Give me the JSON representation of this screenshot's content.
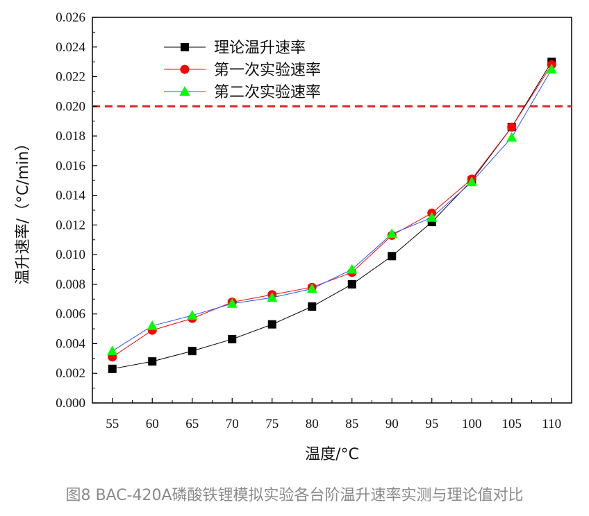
{
  "chart_data": {
    "type": "line",
    "x": [
      55,
      60,
      65,
      70,
      75,
      80,
      85,
      90,
      95,
      100,
      105,
      110
    ],
    "xlabel": "温度/°C",
    "ylabel": "温升速率/（°C/min）",
    "xlim": [
      52.5,
      112.5
    ],
    "ylim": [
      0,
      0.026
    ],
    "y_ticks": [
      "0.000",
      "0.002",
      "0.004",
      "0.006",
      "0.008",
      "0.010",
      "0.012",
      "0.014",
      "0.016",
      "0.018",
      "0.020",
      "0.022",
      "0.024",
      "0.026"
    ],
    "series": [
      {
        "name": "理论温升速率",
        "color": "#000000",
        "marker": "square",
        "values": [
          0.0023,
          0.0028,
          0.0035,
          0.0043,
          0.0053,
          0.0065,
          0.008,
          0.0099,
          0.0122,
          0.015,
          0.0186,
          0.023
        ]
      },
      {
        "name": "第一次实验速率",
        "color": "#ff0000",
        "marker": "circle",
        "values": [
          0.0031,
          0.0049,
          0.0057,
          0.0068,
          0.0073,
          0.0078,
          0.0088,
          0.0113,
          0.0128,
          0.0151,
          0.0186,
          0.0228
        ]
      },
      {
        "name": "第二次实验速率",
        "color": "#00ff00",
        "line_color": "#2255ff",
        "marker": "triangle",
        "values": [
          0.0035,
          0.0052,
          0.0059,
          0.0067,
          0.0071,
          0.0077,
          0.009,
          0.0114,
          0.0125,
          0.0149,
          0.0179,
          0.0225
        ]
      }
    ],
    "reference_line": {
      "y": 0.02,
      "color": "#e02020",
      "style": "dashed"
    },
    "legend_position": "top-left",
    "grid": false
  },
  "caption": "图8 BAC-420A磷酸铁锂模拟实验各台阶温升速率实测与理论值对比"
}
